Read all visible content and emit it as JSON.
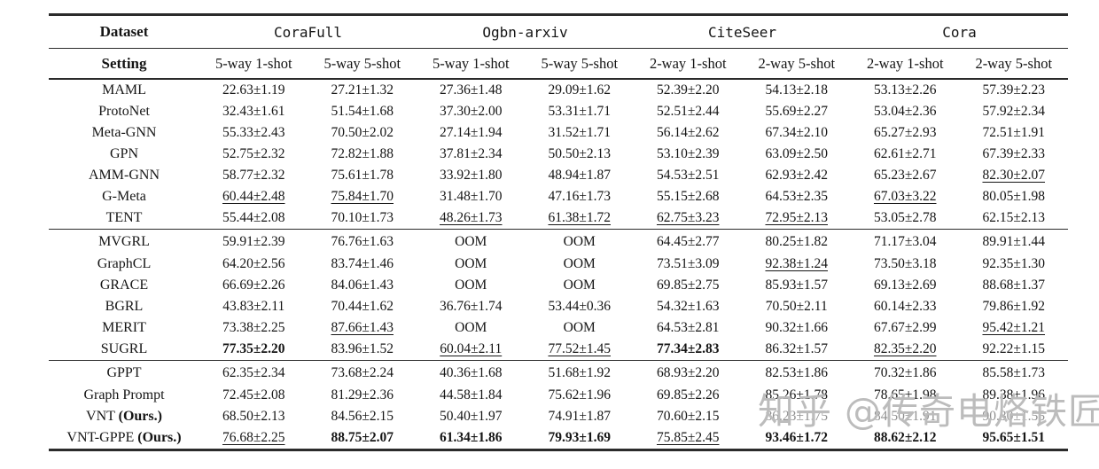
{
  "table": {
    "header": {
      "dataset_label": "Dataset",
      "setting_label": "Setting",
      "datasets": [
        "CoraFull",
        "Ogbn-arxiv",
        "CiteSeer",
        "Cora"
      ],
      "settings": [
        "5-way 1-shot",
        "5-way 5-shot",
        "5-way 1-shot",
        "5-way 5-shot",
        "2-way 1-shot",
        "2-way 5-shot",
        "2-way 1-shot",
        "2-way 5-shot"
      ]
    },
    "groups": [
      {
        "rows": [
          {
            "method": "MAML",
            "suffix": "",
            "values": [
              "22.63±1.19",
              "27.21±1.32",
              "27.36±1.48",
              "29.09±1.62",
              "52.39±2.20",
              "54.13±2.18",
              "53.13±2.26",
              "57.39±2.23"
            ],
            "styles": [
              "",
              "",
              "",
              "",
              "",
              "",
              "",
              ""
            ]
          },
          {
            "method": "ProtoNet",
            "suffix": "",
            "values": [
              "32.43±1.61",
              "51.54±1.68",
              "37.30±2.00",
              "53.31±1.71",
              "52.51±2.44",
              "55.69±2.27",
              "53.04±2.36",
              "57.92±2.34"
            ],
            "styles": [
              "",
              "",
              "",
              "",
              "",
              "",
              "",
              ""
            ]
          },
          {
            "method": "Meta-GNN",
            "suffix": "",
            "values": [
              "55.33±2.43",
              "70.50±2.02",
              "27.14±1.94",
              "31.52±1.71",
              "56.14±2.62",
              "67.34±2.10",
              "65.27±2.93",
              "72.51±1.91"
            ],
            "styles": [
              "",
              "",
              "",
              "",
              "",
              "",
              "",
              ""
            ]
          },
          {
            "method": "GPN",
            "suffix": "",
            "values": [
              "52.75±2.32",
              "72.82±1.88",
              "37.81±2.34",
              "50.50±2.13",
              "53.10±2.39",
              "63.09±2.50",
              "62.61±2.71",
              "67.39±2.33"
            ],
            "styles": [
              "",
              "",
              "",
              "",
              "",
              "",
              "",
              ""
            ]
          },
          {
            "method": "AMM-GNN",
            "suffix": "",
            "values": [
              "58.77±2.32",
              "75.61±1.78",
              "33.92±1.80",
              "48.94±1.87",
              "54.53±2.51",
              "62.93±2.42",
              "65.23±2.67",
              "82.30±2.07"
            ],
            "styles": [
              "",
              "",
              "",
              "",
              "",
              "",
              "",
              "u"
            ]
          },
          {
            "method": "G-Meta",
            "suffix": "",
            "values": [
              "60.44±2.48",
              "75.84±1.70",
              "31.48±1.70",
              "47.16±1.73",
              "55.15±2.68",
              "64.53±2.35",
              "67.03±3.22",
              "80.05±1.98"
            ],
            "styles": [
              "u",
              "u",
              "",
              "",
              "",
              "",
              "u",
              ""
            ]
          },
          {
            "method": "TENT",
            "suffix": "",
            "values": [
              "55.44±2.08",
              "70.10±1.73",
              "48.26±1.73",
              "61.38±1.72",
              "62.75±3.23",
              "72.95±2.13",
              "53.05±2.78",
              "62.15±2.13"
            ],
            "styles": [
              "",
              "",
              "u",
              "u",
              "u",
              "u",
              "",
              ""
            ]
          }
        ]
      },
      {
        "rows": [
          {
            "method": "MVGRL",
            "suffix": "",
            "values": [
              "59.91±2.39",
              "76.76±1.63",
              "OOM",
              "OOM",
              "64.45±2.77",
              "80.25±1.82",
              "71.17±3.04",
              "89.91±1.44"
            ],
            "styles": [
              "",
              "",
              "",
              "",
              "",
              "",
              "",
              ""
            ]
          },
          {
            "method": "GraphCL",
            "suffix": "",
            "values": [
              "64.20±2.56",
              "83.74±1.46",
              "OOM",
              "OOM",
              "73.51±3.09",
              "92.38±1.24",
              "73.50±3.18",
              "92.35±1.30"
            ],
            "styles": [
              "",
              "",
              "",
              "",
              "",
              "u",
              "",
              ""
            ]
          },
          {
            "method": "GRACE",
            "suffix": "",
            "values": [
              "66.69±2.26",
              "84.06±1.43",
              "OOM",
              "OOM",
              "69.85±2.75",
              "85.93±1.57",
              "69.13±2.69",
              "88.68±1.37"
            ],
            "styles": [
              "",
              "",
              "",
              "",
              "",
              "",
              "",
              ""
            ]
          },
          {
            "method": "BGRL",
            "suffix": "",
            "values": [
              "43.83±2.11",
              "70.44±1.62",
              "36.76±1.74",
              "53.44±0.36",
              "54.32±1.63",
              "70.50±2.11",
              "60.14±2.33",
              "79.86±1.92"
            ],
            "styles": [
              "",
              "",
              "",
              "",
              "",
              "",
              "",
              ""
            ]
          },
          {
            "method": "MERIT",
            "suffix": "",
            "values": [
              "73.38±2.25",
              "87.66±1.43",
              "OOM",
              "OOM",
              "64.53±2.81",
              "90.32±1.66",
              "67.67±2.99",
              "95.42±1.21"
            ],
            "styles": [
              "",
              "u",
              "",
              "",
              "",
              "",
              "",
              "u"
            ]
          },
          {
            "method": "SUGRL",
            "suffix": "",
            "values": [
              "77.35±2.20",
              "83.96±1.52",
              "60.04±2.11",
              "77.52±1.45",
              "77.34±2.83",
              "86.32±1.57",
              "82.35±2.20",
              "92.22±1.15"
            ],
            "styles": [
              "b",
              "",
              "u",
              "u",
              "b",
              "",
              "u",
              ""
            ]
          }
        ]
      },
      {
        "rows": [
          {
            "method": "GPPT",
            "suffix": "",
            "values": [
              "62.35±2.34",
              "73.68±2.24",
              "40.36±1.68",
              "51.68±1.92",
              "68.93±2.20",
              "82.53±1.86",
              "70.32±1.86",
              "85.58±1.73"
            ],
            "styles": [
              "",
              "",
              "",
              "",
              "",
              "",
              "",
              ""
            ]
          },
          {
            "method": "Graph Prompt",
            "suffix": "",
            "values": [
              "72.45±2.08",
              "81.29±2.36",
              "44.58±1.84",
              "75.62±1.96",
              "69.85±2.26",
              "85.26±1.78",
              "78.65±1.98",
              "89.38±1.96"
            ],
            "styles": [
              "",
              "",
              "",
              "",
              "",
              "",
              "",
              ""
            ]
          },
          {
            "method": "VNT",
            "suffix": "(Ours.)",
            "values": [
              "68.50±2.13",
              "84.56±2.15",
              "50.40±1.97",
              "74.91±1.87",
              "70.60±2.15",
              "86.23±1.75",
              "84.50±1.91",
              "90.30±1.55"
            ],
            "styles": [
              "",
              "",
              "",
              "",
              "",
              "g",
              "g",
              "g"
            ]
          },
          {
            "method": "VNT-GPPE",
            "suffix": "(Ours.)",
            "values": [
              "76.68±2.25",
              "88.75±2.07",
              "61.34±1.86",
              "79.93±1.69",
              "75.85±2.45",
              "93.46±1.72",
              "88.62±2.12",
              "95.65±1.51"
            ],
            "styles": [
              "u",
              "b",
              "b",
              "b",
              "u",
              "b",
              "b",
              "b"
            ]
          }
        ]
      }
    ]
  },
  "watermark": {
    "text": "知乎 @传奇电烙铁匠",
    "color": "#bcbcbc"
  }
}
